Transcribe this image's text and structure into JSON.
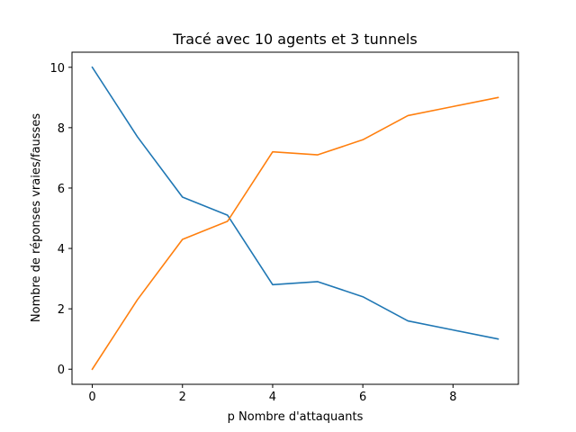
{
  "chart_data": {
    "type": "line",
    "title": "Tracé avec 10 agents et 3 tunnels",
    "xlabel": "p Nombre d'attaquants",
    "ylabel": "Nombre de réponses vraies/fausses",
    "x": [
      0,
      1,
      2,
      3,
      4,
      5,
      6,
      7,
      8,
      9
    ],
    "series": [
      {
        "color": "#1f77b4",
        "values": [
          10,
          7.7,
          5.7,
          5.1,
          2.8,
          2.9,
          2.4,
          1.6,
          1.3,
          1.0
        ]
      },
      {
        "color": "#ff7f0e",
        "values": [
          0,
          2.3,
          4.3,
          4.9,
          7.2,
          7.1,
          7.6,
          8.4,
          8.7,
          9.0
        ]
      }
    ],
    "xlim": [
      -0.45,
      9.45
    ],
    "ylim": [
      -0.5,
      10.5
    ],
    "xticks": [
      0,
      2,
      4,
      6,
      8
    ],
    "yticks": [
      0,
      2,
      4,
      6,
      8,
      10
    ],
    "grid": false,
    "legend": "none"
  }
}
